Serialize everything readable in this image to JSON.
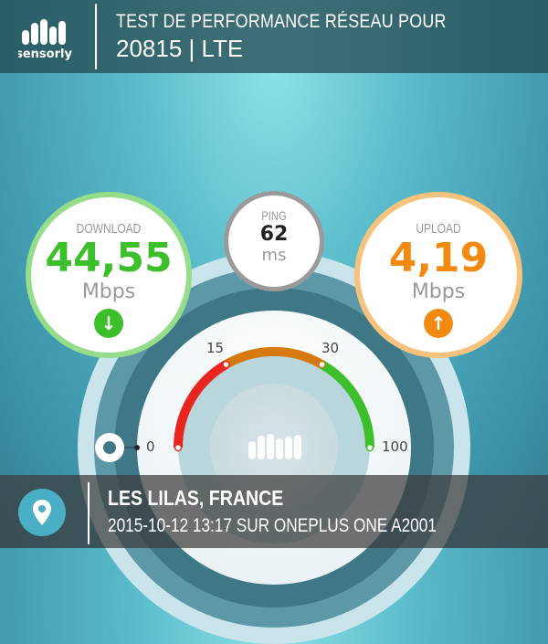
{
  "header": {
    "logo_text": "sensorly",
    "title": "TEST DE PERFORMANCE RÉSEAU POUR",
    "subtitle": "20815 | LTE"
  },
  "download": {
    "label": "DOWNLOAD",
    "value": "44,55",
    "unit": "Mbps",
    "icon": "arrow-down-icon",
    "color": "#3cbf2a"
  },
  "ping": {
    "label": "PING",
    "value": "62",
    "unit": "ms"
  },
  "upload": {
    "label": "UPLOAD",
    "value": "4,19",
    "unit": "Mbps",
    "icon": "arrow-up-icon",
    "color": "#f28a12"
  },
  "gauge": {
    "ticks": [
      "0",
      "15",
      "30",
      "100"
    ],
    "colors": {
      "low": "#e8261f",
      "mid": "#d67a10",
      "high": "#3cbf2a"
    }
  },
  "footer": {
    "location": "LES LILAS, FRANCE",
    "details": "2015-10-12 13:17 SUR ONEPLUS ONE A2001"
  }
}
